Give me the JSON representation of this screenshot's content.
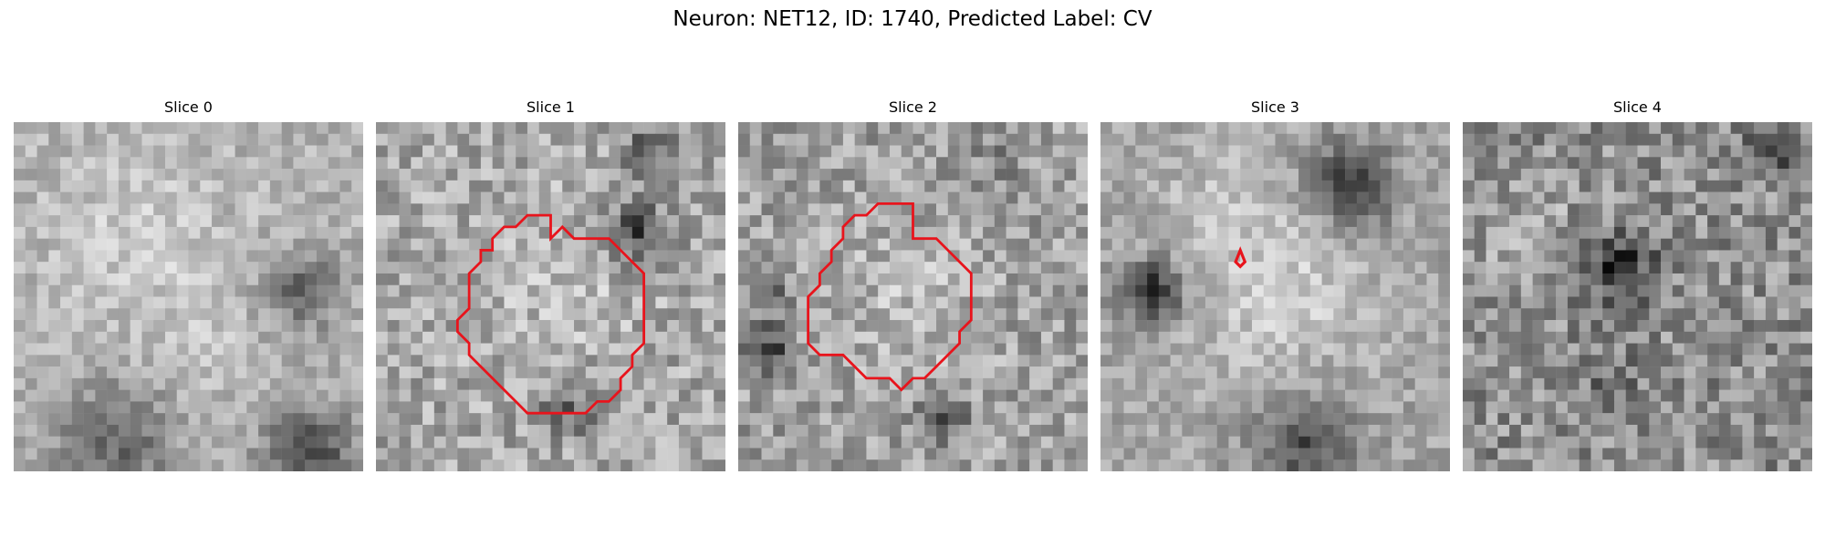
{
  "figure": {
    "title": "Neuron: NET12, ID: 1740, Predicted Label: CV"
  },
  "slices": [
    {
      "title": "Slice 0",
      "has_contour": false
    },
    {
      "title": "Slice 1",
      "has_contour": true
    },
    {
      "title": "Slice 2",
      "has_contour": true
    },
    {
      "title": "Slice 3",
      "has_contour": true
    },
    {
      "title": "Slice 4",
      "has_contour": false
    }
  ],
  "colors": {
    "contour": "#e8141c",
    "colormap": "grayscale"
  }
}
